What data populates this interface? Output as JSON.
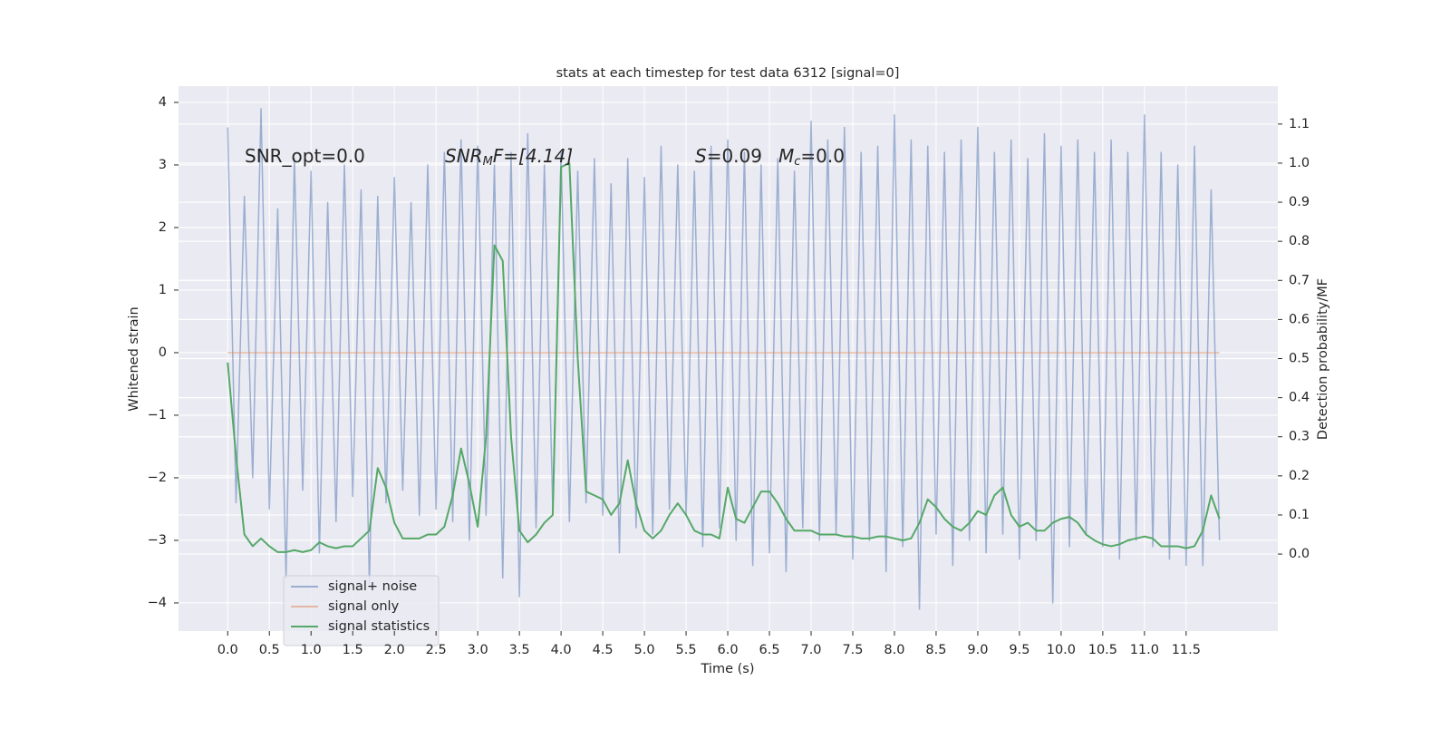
{
  "chart_data": {
    "type": "line",
    "title": "stats at each timestep for test data 6312 [signal=0]",
    "xlabel": "Time (s)",
    "ylabel": "Whitened strain",
    "y2label": "Detection probability/MF",
    "annotations": [
      {
        "parts": [
          "SNR_opt=0.0"
        ]
      },
      {
        "parts": [
          "SNR",
          "M",
          "F=[4.14]"
        ]
      },
      {
        "parts": [
          "S",
          "=0.09",
          "M",
          "c",
          "=0.0"
        ]
      }
    ],
    "grid": true,
    "legend": "lower left",
    "x": [
      0,
      0.1,
      0.2,
      0.3,
      0.4,
      0.5,
      0.6,
      0.7,
      0.8,
      0.9,
      1,
      1.1,
      1.2,
      1.3,
      1.4,
      1.5,
      1.6,
      1.7,
      1.8,
      1.9,
      2,
      2.1,
      2.2,
      2.3,
      2.4,
      2.5,
      2.6,
      2.7,
      2.8,
      2.9,
      3,
      3.1,
      3.2,
      3.3,
      3.4,
      3.5,
      3.6,
      3.7,
      3.8,
      3.9,
      4,
      4.1,
      4.2,
      4.3,
      4.4,
      4.5,
      4.6,
      4.7,
      4.8,
      4.9,
      5,
      5.1,
      5.2,
      5.3,
      5.4,
      5.5,
      5.6,
      5.7,
      5.8,
      5.9,
      6,
      6.1,
      6.2,
      6.3,
      6.4,
      6.5,
      6.6,
      6.7,
      6.8,
      6.9,
      7,
      7.1,
      7.2,
      7.3,
      7.4,
      7.5,
      7.6,
      7.7,
      7.8,
      7.9,
      8,
      8.1,
      8.2,
      8.3,
      8.4,
      8.5,
      8.6,
      8.7,
      8.8,
      8.9,
      9,
      9.1,
      9.2,
      9.3,
      9.4,
      9.5,
      9.6,
      9.7,
      9.8,
      9.9,
      10,
      10.1,
      10.2,
      10.3,
      10.4,
      10.5,
      10.6,
      10.7,
      10.8,
      10.9,
      11,
      11.1,
      11.2,
      11.3,
      11.4,
      11.5,
      11.6,
      11.7,
      11.8,
      11.9
    ],
    "series": [
      {
        "name": "signal+ noise",
        "color": "#4c72b0",
        "opacity": 0.5,
        "values": [
          3.6,
          -2.4,
          2.5,
          -2.0,
          3.9,
          -2.5,
          2.3,
          -3.6,
          3.1,
          -2.2,
          2.9,
          -3.2,
          2.4,
          -2.7,
          3.0,
          -2.3,
          2.6,
          -3.7,
          2.5,
          -2.4,
          2.8,
          -2.2,
          2.4,
          -2.6,
          3.0,
          -2.5,
          3.2,
          -2.7,
          3.4,
          -3.0,
          3.3,
          -2.6,
          3.0,
          -3.6,
          3.2,
          -3.9,
          3.5,
          -2.8,
          3.0,
          -2.5,
          3.2,
          -2.7,
          2.9,
          -2.4,
          3.1,
          -2.6,
          2.7,
          -3.2,
          3.1,
          -2.8,
          2.8,
          -2.9,
          3.3,
          -2.5,
          3.0,
          -2.6,
          2.9,
          -3.1,
          3.3,
          -2.8,
          3.4,
          -3.0,
          3.2,
          -3.4,
          3.0,
          -3.2,
          3.1,
          -3.5,
          2.9,
          -2.8,
          3.7,
          -3.0,
          3.4,
          -2.9,
          3.6,
          -3.3,
          3.2,
          -3.0,
          3.3,
          -3.5,
          3.8,
          -3.1,
          3.4,
          -4.1,
          3.3,
          -2.9,
          3.2,
          -3.4,
          3.4,
          -3.0,
          3.6,
          -3.2,
          3.2,
          -2.9,
          3.4,
          -3.3,
          3.1,
          -3.0,
          3.5,
          -4.0,
          3.3,
          -3.1,
          3.4,
          -2.9,
          3.2,
          -3.1,
          3.4,
          -3.3,
          3.2,
          -3.0,
          3.8,
          -3.1,
          3.2,
          -3.3,
          3.0,
          -3.4,
          3.3,
          -3.4,
          2.6,
          -3.0
        ]
      },
      {
        "name": "signal only",
        "color": "#dd8452",
        "opacity": 0.5,
        "values": [
          0,
          0,
          0,
          0,
          0,
          0,
          0,
          0,
          0,
          0,
          0,
          0,
          0,
          0,
          0,
          0,
          0,
          0,
          0,
          0,
          0,
          0,
          0,
          0,
          0,
          0,
          0,
          0,
          0,
          0,
          0,
          0,
          0,
          0,
          0,
          0,
          0,
          0,
          0,
          0,
          0,
          0,
          0,
          0,
          0,
          0,
          0,
          0,
          0,
          0,
          0,
          0,
          0,
          0,
          0,
          0,
          0,
          0,
          0,
          0,
          0,
          0,
          0,
          0,
          0,
          0,
          0,
          0,
          0,
          0,
          0,
          0,
          0,
          0,
          0,
          0,
          0,
          0,
          0,
          0,
          0,
          0,
          0,
          0,
          0,
          0,
          0,
          0,
          0,
          0,
          0,
          0,
          0,
          0,
          0,
          0,
          0,
          0,
          0,
          0,
          0,
          0,
          0,
          0,
          0,
          0,
          0,
          0,
          0,
          0,
          0,
          0,
          0,
          0,
          0,
          0,
          0,
          0,
          0,
          0
        ]
      },
      {
        "name": "signal statistics",
        "color": "#55a868",
        "opacity": 1,
        "axis": "y2",
        "values": [
          0.49,
          0.25,
          0.05,
          0.02,
          0.04,
          0.02,
          0.005,
          0.005,
          0.01,
          0.005,
          0.01,
          0.03,
          0.02,
          0.015,
          0.02,
          0.02,
          0.04,
          0.06,
          0.22,
          0.17,
          0.08,
          0.04,
          0.04,
          0.04,
          0.05,
          0.05,
          0.07,
          0.15,
          0.27,
          0.18,
          0.07,
          0.3,
          0.79,
          0.75,
          0.3,
          0.06,
          0.03,
          0.05,
          0.08,
          0.1,
          0.99,
          1.0,
          0.5,
          0.16,
          0.15,
          0.14,
          0.1,
          0.13,
          0.24,
          0.13,
          0.06,
          0.04,
          0.06,
          0.1,
          0.13,
          0.1,
          0.06,
          0.05,
          0.05,
          0.04,
          0.17,
          0.09,
          0.08,
          0.12,
          0.16,
          0.16,
          0.13,
          0.09,
          0.06,
          0.06,
          0.06,
          0.05,
          0.05,
          0.05,
          0.045,
          0.045,
          0.04,
          0.04,
          0.045,
          0.045,
          0.04,
          0.035,
          0.04,
          0.08,
          0.14,
          0.12,
          0.09,
          0.07,
          0.06,
          0.08,
          0.11,
          0.1,
          0.15,
          0.17,
          0.1,
          0.07,
          0.08,
          0.06,
          0.06,
          0.08,
          0.09,
          0.095,
          0.08,
          0.05,
          0.035,
          0.025,
          0.02,
          0.025,
          0.035,
          0.04,
          0.045,
          0.04,
          0.02,
          0.02,
          0.02,
          0.015,
          0.02,
          0.06,
          0.15,
          0.09
        ]
      }
    ],
    "xlim": [
      -0.59,
      12.6
    ],
    "xticks": [
      {
        "value": 0,
        "label": "0.0"
      },
      0.5,
      {
        "value": 1,
        "label": "1.0"
      },
      1.5,
      {
        "value": 2,
        "label": "2.0"
      },
      2.5,
      {
        "value": 3,
        "label": "3.0"
      },
      3.5,
      {
        "value": 4,
        "label": "4.0"
      },
      4.5,
      {
        "value": 5,
        "label": "5.0"
      },
      5.5,
      {
        "value": 6,
        "label": "6.0"
      },
      6.5,
      {
        "value": 7,
        "label": "7.0"
      },
      7.5,
      {
        "value": 8,
        "label": "8.0"
      },
      8.5,
      {
        "value": 9,
        "label": "9.0"
      },
      9.5,
      {
        "value": 10,
        "label": "10.0"
      },
      10.5,
      {
        "value": 11,
        "label": "11.0"
      },
      11.5
    ],
    "ylim": [
      -4.45,
      4.26
    ],
    "yticks": [
      {
        "value": -4,
        "label": "−4"
      },
      {
        "value": -3,
        "label": "−3"
      },
      {
        "value": -2,
        "label": "−2"
      },
      {
        "value": -1,
        "label": "−1"
      },
      0,
      1,
      2,
      3,
      4
    ],
    "y2lim": [
      -0.197,
      1.197
    ],
    "y2ticks": [
      {
        "value": 0,
        "label": "0.0"
      },
      0.1,
      0.2,
      0.3,
      0.4,
      0.5,
      0.6,
      0.7,
      0.8,
      0.9,
      {
        "value": 1,
        "label": "1.0"
      },
      1.1
    ]
  }
}
